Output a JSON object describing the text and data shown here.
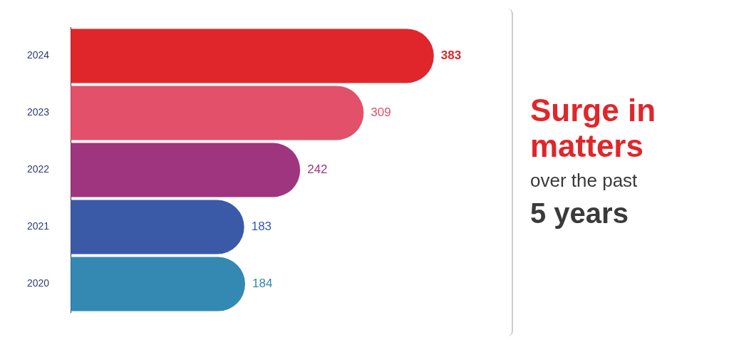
{
  "chart_data": {
    "type": "bar",
    "orientation": "horizontal",
    "title": "Surge in matters",
    "annotations": [
      "over the past",
      "5 years"
    ],
    "categories": [
      "2024",
      "2023",
      "2022",
      "2021",
      "2020"
    ],
    "values": [
      383,
      309,
      242,
      183,
      184
    ],
    "colors": [
      "#e0262a",
      "#e2506a",
      "#a0357f",
      "#3a5aa8",
      "#3489b2"
    ],
    "tick_labels": "y",
    "data_labels": true,
    "grid": false,
    "legend": false
  }
}
